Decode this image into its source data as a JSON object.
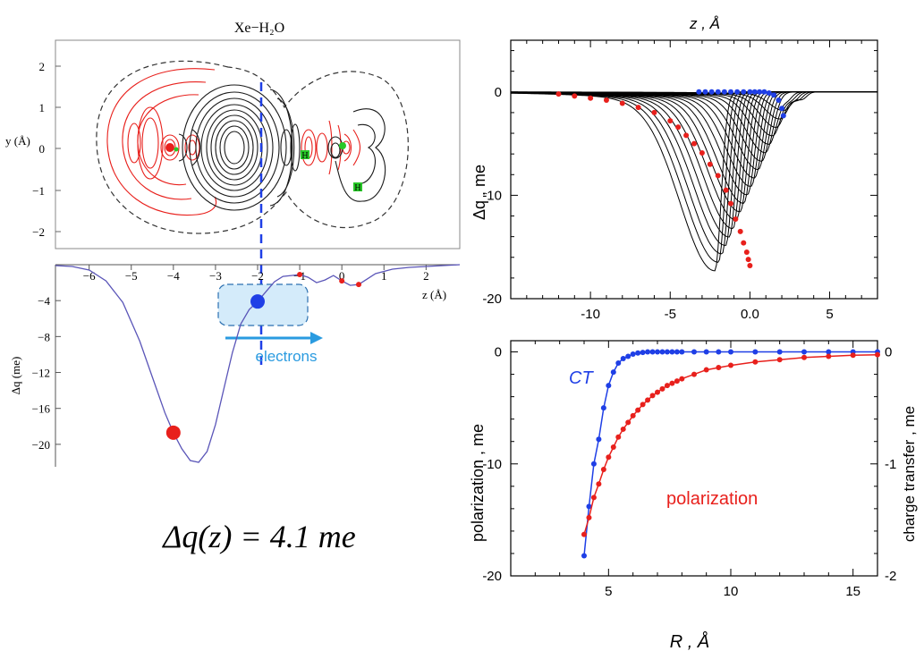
{
  "colors": {
    "red": "#e8201c",
    "blue": "#1f3fe6",
    "cyan": "#2a9be0",
    "curve_purple": "#5a55b8",
    "box_fill": "#d4ebfa",
    "dashed_line": "#1f3fe6"
  },
  "left_panel": {
    "contour_title": "Xe−H₂O",
    "y_axis_label": "y (Å)",
    "z_axis_label": "z (Å)",
    "dq_axis_label": "Δq (me)",
    "atom_label_1": "H",
    "atom_label_2": "H",
    "electrons_label": "electrons",
    "formula": "Δq(z) = 4.1  me",
    "y_ticks": [
      "2",
      "1",
      "0",
      "−1",
      "−2"
    ],
    "z_ticks": [
      "−6",
      "−5",
      "−4",
      "−3",
      "−2",
      "−1",
      "0",
      "1",
      "2"
    ],
    "dq_ticks": [
      "−4",
      "−8",
      "−12",
      "−16",
      "−20"
    ]
  },
  "chart_data": [
    {
      "type": "line",
      "title": "",
      "xlabel": "z (Å)",
      "ylabel": "Δq (me)",
      "xlim": [
        -6.8,
        2.8
      ],
      "ylim": [
        -22.5,
        0
      ],
      "x_ticks": [
        -6,
        -5,
        -4,
        -3,
        -2,
        -1,
        0,
        1,
        2
      ],
      "y_ticks": [
        -4,
        -8,
        -12,
        -16,
        -20
      ],
      "series": [
        {
          "x": [
            -6.8,
            -6.4,
            -6.0,
            -5.6,
            -5.2,
            -4.8,
            -4.5,
            -4.2,
            -4.0,
            -3.8,
            -3.6,
            -3.4,
            -3.2,
            -3.0,
            -2.8,
            -2.6,
            -2.4,
            -2.2,
            -2.0,
            -1.8,
            -1.6,
            -1.4,
            -1.2,
            -1.0,
            -0.8,
            -0.6,
            -0.4,
            -0.2,
            0.0,
            0.2,
            0.4,
            0.6,
            0.8,
            1.2,
            1.6,
            2.0,
            2.4,
            2.8
          ],
          "y": [
            -0.1,
            -0.2,
            -0.6,
            -1.8,
            -4.2,
            -8.5,
            -12.5,
            -16.5,
            -18.7,
            -20.5,
            -21.8,
            -22.0,
            -20.8,
            -17.8,
            -13.8,
            -9.8,
            -6.6,
            -5.0,
            -4.1,
            -3.0,
            -1.9,
            -1.3,
            -1.2,
            -1.1,
            -1.4,
            -2.0,
            -1.7,
            -1.2,
            -1.8,
            -2.3,
            -2.2,
            -1.6,
            -1.0,
            -0.5,
            -0.3,
            -0.2,
            -0.1,
            0.0
          ]
        }
      ],
      "markers": [
        {
          "x": -4.0,
          "y": -18.7,
          "color": "red"
        },
        {
          "x": -2.0,
          "y": -4.1,
          "color": "blue"
        },
        {
          "x": -1.0,
          "y": -1.1,
          "color": "red"
        },
        {
          "x": 0.0,
          "y": -1.8,
          "color": "red"
        },
        {
          "x": 0.4,
          "y": -2.2,
          "color": "red"
        }
      ]
    },
    {
      "type": "line",
      "title": "z  , Å",
      "xlabel": "",
      "ylabel": "Δq  , me",
      "xlim": [
        -15,
        8
      ],
      "ylim": [
        -20,
        5
      ],
      "x_ticks": [
        -10,
        -5,
        0,
        5
      ],
      "y_ticks": [
        0,
        -10,
        -20
      ],
      "curve_count": 20,
      "red_points": {
        "x": [
          -12,
          -11,
          -10,
          -9,
          -8,
          -7,
          -6,
          -5,
          -4.5,
          -4,
          -3.5,
          -3,
          -2.5,
          -2,
          -1.5,
          -1.2,
          -0.9,
          -0.6,
          -0.4,
          -0.2,
          -0.1,
          0.0
        ],
        "y": [
          -0.2,
          -0.4,
          -0.6,
          -0.8,
          -1.1,
          -1.5,
          -2.0,
          -2.8,
          -3.4,
          -4.2,
          -5.0,
          -5.9,
          -7.0,
          -8.1,
          -9.5,
          -10.8,
          -12.3,
          -13.5,
          -14.6,
          -15.5,
          -16.2,
          -16.8
        ]
      },
      "blue_points": {
        "x": [
          -3.2,
          -2.8,
          -2.4,
          -2.0,
          -1.6,
          -1.2,
          -0.8,
          -0.4,
          0.0,
          0.3,
          0.6,
          0.9,
          1.2,
          1.5,
          1.8,
          2.0,
          2.1
        ],
        "y": [
          0,
          0,
          0,
          0,
          0,
          0,
          0,
          0,
          0,
          0,
          0,
          0,
          -0.1,
          -0.3,
          -0.8,
          -1.6,
          -2.3
        ]
      }
    },
    {
      "type": "line",
      "title": "",
      "xlabel": "R , Å",
      "ylabel": "polarization   , me",
      "y2label": "charge transfer   , me",
      "xlim": [
        1,
        16
      ],
      "ylim": [
        -20,
        1
      ],
      "y2lim": [
        -2,
        0.1
      ],
      "x_ticks": [
        5,
        10,
        15
      ],
      "y_ticks": [
        0,
        -10,
        -20
      ],
      "y2_ticks": [
        0,
        -1,
        -2
      ],
      "series": [
        {
          "name": "CT",
          "color": "blue",
          "axis": "right",
          "x": [
            4,
            4.2,
            4.4,
            4.6,
            4.8,
            5,
            5.2,
            5.4,
            5.6,
            5.8,
            6,
            6.2,
            6.4,
            6.6,
            6.8,
            7,
            7.2,
            7.4,
            7.6,
            7.8,
            8,
            8.5,
            9,
            9.5,
            10,
            11,
            12,
            13,
            14,
            15,
            16
          ],
          "y": [
            -1.82,
            -1.38,
            -1.0,
            -0.78,
            -0.5,
            -0.3,
            -0.18,
            -0.1,
            -0.06,
            -0.04,
            -0.02,
            -0.01,
            -0.005,
            0,
            0,
            0,
            0,
            0,
            0,
            0,
            0,
            0,
            0,
            0,
            0,
            0,
            0,
            0,
            0,
            0,
            0
          ]
        },
        {
          "name": "polarization",
          "color": "red",
          "axis": "left",
          "x": [
            4,
            4.2,
            4.4,
            4.6,
            4.8,
            5,
            5.2,
            5.4,
            5.6,
            5.8,
            6,
            6.2,
            6.4,
            6.6,
            6.8,
            7,
            7.2,
            7.4,
            7.6,
            7.8,
            8,
            8.5,
            9,
            9.5,
            10,
            11,
            12,
            13,
            14,
            15,
            16
          ],
          "y": [
            -16.3,
            -14.8,
            -13.0,
            -11.8,
            -10.5,
            -9.4,
            -8.5,
            -7.6,
            -6.9,
            -6.3,
            -5.7,
            -5.2,
            -4.7,
            -4.3,
            -3.9,
            -3.6,
            -3.3,
            -3.0,
            -2.8,
            -2.6,
            -2.4,
            -2.0,
            -1.6,
            -1.4,
            -1.2,
            -0.9,
            -0.7,
            -0.5,
            -0.4,
            -0.3,
            -0.25
          ]
        }
      ]
    }
  ],
  "right_top": {
    "title": "z  , Å",
    "ylabel": "Δq  , me",
    "x_ticks": [
      "-10",
      "-5",
      "0.0",
      "5"
    ],
    "y_ticks": [
      "0",
      "-10",
      "-20"
    ]
  },
  "right_bottom": {
    "xlabel": "R , Å",
    "ylabel": "polarization   , me",
    "y2label": "charge transfer   , me",
    "ct_label": "CT",
    "pol_label": "polarization",
    "x_ticks": [
      "5",
      "10",
      "15"
    ],
    "y_ticks": [
      "0",
      "-10",
      "-20"
    ],
    "y2_ticks": [
      "0",
      "-1",
      "-2"
    ]
  }
}
